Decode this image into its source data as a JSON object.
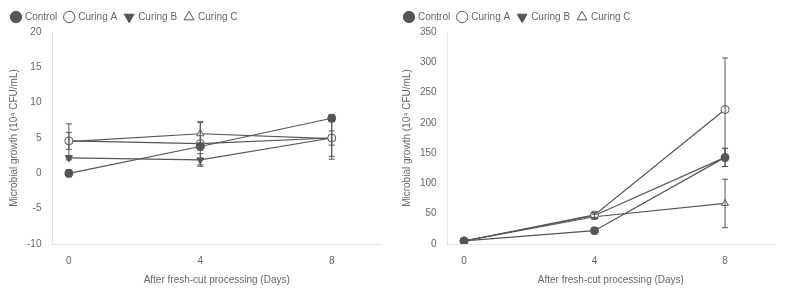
{
  "chart_data": [
    {
      "type": "line",
      "x": [
        0,
        4,
        8
      ],
      "xlabel": "After fresh-cut processing (Days)",
      "ylabel": "Microbial growth (10⁴ CFU/mL)",
      "xlim": [
        -0.5,
        9.5
      ],
      "xticks": [
        0,
        4,
        8
      ],
      "ylim": [
        -10,
        20
      ],
      "yticks": [
        -10,
        -5,
        0,
        5,
        10,
        15,
        20
      ],
      "grid": false,
      "legend": "upper left",
      "series": [
        {
          "name": "Control",
          "values": [
            0.0,
            3.8,
            7.8
          ],
          "yerr": [
            0.5,
            0.5,
            0.5
          ],
          "marker": "circle",
          "color": "#555555"
        },
        {
          "name": "Curing A",
          "values": [
            4.6,
            4.2,
            5.0
          ],
          "yerr": [
            1.2,
            3.0,
            3.0
          ],
          "marker": "open-circle",
          "color": "#555555"
        },
        {
          "name": "Curing B",
          "values": [
            2.2,
            1.9,
            5.0
          ],
          "yerr": [
            0.3,
            0.9,
            1.0
          ],
          "marker": "triangle-down",
          "color": "#555555"
        },
        {
          "name": "Curing C",
          "values": [
            4.5,
            5.6,
            4.9
          ],
          "yerr": [
            2.5,
            1.7,
            2.5
          ],
          "marker": "open-triangle-up",
          "color": "#555555"
        }
      ]
    },
    {
      "type": "line",
      "x": [
        0,
        4,
        8
      ],
      "xlabel": "After fresh-cut processing (Days)",
      "ylabel": "Microbial growth (10⁴ CFU/mL)",
      "xlim": [
        -0.5,
        9.5
      ],
      "xticks": [
        0,
        4,
        8
      ],
      "ylim": [
        0,
        350
      ],
      "yticks": [
        0,
        50,
        100,
        150,
        200,
        250,
        300,
        350
      ],
      "grid": false,
      "legend": "upper left",
      "series": [
        {
          "name": "Control",
          "values": [
            5.0,
            22.0,
            143.0
          ],
          "yerr": [
            1.0,
            5.0,
            15.0
          ],
          "marker": "circle",
          "color": "#555555"
        },
        {
          "name": "Curing A",
          "values": [
            5.0,
            48.0,
            222.0
          ],
          "yerr": [
            1.0,
            4.0,
            85.0
          ],
          "marker": "open-circle",
          "color": "#555555"
        },
        {
          "name": "Curing B",
          "values": [
            5.0,
            47.0,
            143.0
          ],
          "yerr": [
            1.0,
            4.0,
            15.0
          ],
          "marker": "triangle-down",
          "color": "#555555"
        },
        {
          "name": "Curing C",
          "values": [
            5.0,
            45.0,
            67.0
          ],
          "yerr": [
            1.0,
            4.0,
            40.0
          ],
          "marker": "open-triangle-up",
          "color": "#555555"
        }
      ]
    }
  ]
}
